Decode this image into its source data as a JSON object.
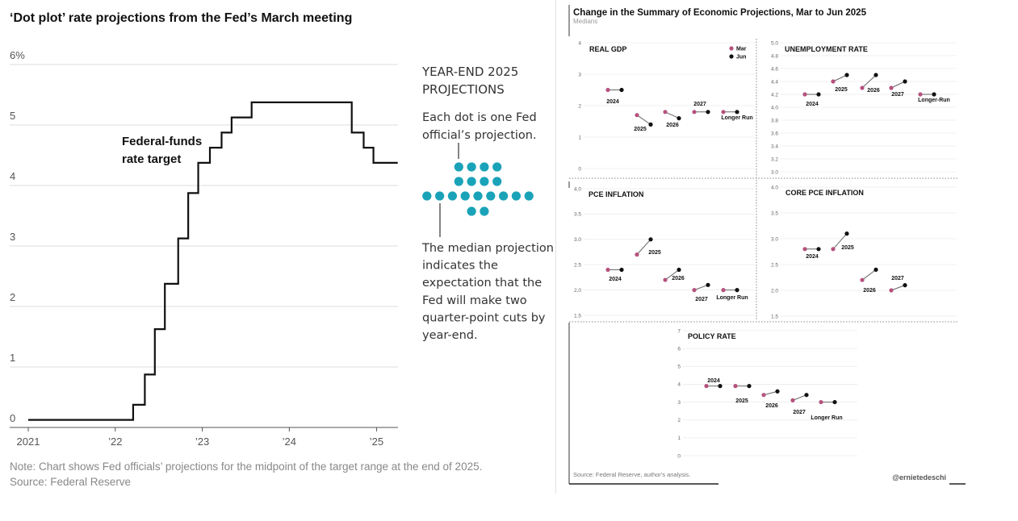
{
  "left": {
    "title": "‘Dot plot’ rate projections from the Fed’s March meeting",
    "note_line1": "Note: Chart shows Fed officials’ projections for the midpoint of the target range at the end of 2025.",
    "note_line2": "Source: Federal Reserve",
    "annotation": {
      "heading": [
        "YEAR-END 2025",
        "PROJECTIONS"
      ],
      "dot_caption": [
        "Each dot is one Fed",
        "official’s projection."
      ],
      "median_caption": [
        "The median projection",
        "indicates the",
        "expectation that the",
        "Fed will make two",
        "quarter-point cuts by",
        "year-end."
      ],
      "dot_rows": [
        4,
        4,
        9,
        2
      ],
      "dot_color": "#1aa3b8"
    }
  },
  "right": {
    "title": "Change in the Summary of Economic Projections, Mar to Jun 2025",
    "subtitle": "Medians",
    "source": "Source: Federal Reserve, author's analysis.",
    "handle": "@ernietedeschi",
    "legend": [
      "Mar",
      "Jun"
    ],
    "mar_color": "#b5527d",
    "jun_color": "#111111"
  },
  "chart_data": [
    {
      "type": "line",
      "subtype": "step",
      "title": "‘Dot plot’ rate projections from the Fed’s March meeting",
      "series": [
        {
          "name": "Federal-funds rate target",
          "label_lines": [
            "Federal-funds",
            "rate target"
          ],
          "points": [
            [
              "2021-01-01",
              0.125
            ],
            [
              "2022-03-17",
              0.375
            ],
            [
              "2022-05-05",
              0.875
            ],
            [
              "2022-06-16",
              1.625
            ],
            [
              "2022-07-28",
              2.375
            ],
            [
              "2022-09-22",
              3.125
            ],
            [
              "2022-11-03",
              3.875
            ],
            [
              "2022-12-15",
              4.375
            ],
            [
              "2023-02-02",
              4.625
            ],
            [
              "2023-03-23",
              4.875
            ],
            [
              "2023-05-04",
              5.125
            ],
            [
              "2023-07-27",
              5.375
            ],
            [
              "2024-09-19",
              4.875
            ],
            [
              "2024-11-08",
              4.625
            ],
            [
              "2024-12-19",
              4.375
            ],
            [
              "2025-03-31",
              4.375
            ]
          ]
        }
      ],
      "x_ticks": [
        "2021",
        "’22",
        "’23",
        "’24",
        "’25"
      ],
      "y_ticks": [
        "0",
        "1",
        "2",
        "3",
        "4",
        "5",
        "6%"
      ],
      "ylim": [
        0,
        6
      ]
    },
    {
      "type": "scatter",
      "title": "REAL GDP",
      "categories": [
        "2024",
        "2025",
        "2026",
        "2027",
        "Longer Run"
      ],
      "series": [
        {
          "name": "Mar",
          "values": [
            2.5,
            1.7,
            1.8,
            1.8,
            1.8
          ]
        },
        {
          "name": "Jun",
          "values": [
            2.5,
            1.4,
            1.6,
            1.8,
            1.8
          ]
        }
      ],
      "y_ticks": [
        "0",
        "1",
        "2",
        "3",
        "4"
      ],
      "ylim": [
        0,
        4
      ]
    },
    {
      "type": "scatter",
      "title": "UNEMPLOYMENT RATE",
      "categories": [
        "2024",
        "2025",
        "2026",
        "2027",
        "Longer-Run"
      ],
      "series": [
        {
          "name": "Mar",
          "values": [
            4.2,
            4.4,
            4.3,
            4.3,
            4.2
          ]
        },
        {
          "name": "Jun",
          "values": [
            4.2,
            4.5,
            4.5,
            4.4,
            4.2
          ]
        }
      ],
      "y_ticks": [
        "3.0",
        "3.2",
        "3.4",
        "3.6",
        "3.8",
        "4.0",
        "4.2",
        "4.4",
        "4.6",
        "4.8",
        "5.0"
      ],
      "ylim": [
        3.0,
        5.0
      ]
    },
    {
      "type": "scatter",
      "title": "PCE INFLATION",
      "categories": [
        "2024",
        "2025",
        "2026",
        "2027",
        "Longer Run"
      ],
      "series": [
        {
          "name": "Mar",
          "values": [
            2.4,
            2.7,
            2.2,
            2.0,
            2.0
          ]
        },
        {
          "name": "Jun",
          "values": [
            2.4,
            3.0,
            2.4,
            2.1,
            2.0
          ]
        }
      ],
      "y_ticks": [
        "1.5",
        "2.0",
        "2.5",
        "3.0",
        "3.5",
        "4.0"
      ],
      "ylim": [
        1.5,
        4.0
      ]
    },
    {
      "type": "scatter",
      "title": "CORE PCE INFLATION",
      "categories": [
        "2024",
        "2025",
        "2026",
        "2027"
      ],
      "series": [
        {
          "name": "Mar",
          "values": [
            2.8,
            2.8,
            2.2,
            2.0
          ]
        },
        {
          "name": "Jun",
          "values": [
            2.8,
            3.1,
            2.4,
            2.1
          ]
        }
      ],
      "y_ticks": [
        "1.5",
        "2.0",
        "2.5",
        "3.0",
        "3.5",
        "4.0"
      ],
      "ylim": [
        1.5,
        4.0
      ]
    },
    {
      "type": "scatter",
      "title": "POLICY RATE",
      "categories": [
        "2024",
        "2025",
        "2026",
        "2027",
        "Longer Run"
      ],
      "series": [
        {
          "name": "Mar",
          "values": [
            3.9,
            3.9,
            3.4,
            3.1,
            3.0
          ]
        },
        {
          "name": "Jun",
          "values": [
            3.9,
            3.9,
            3.6,
            3.4,
            3.0
          ]
        }
      ],
      "y_ticks": [
        "0",
        "1",
        "2",
        "3",
        "4",
        "5",
        "6",
        "7"
      ],
      "ylim": [
        0,
        7
      ]
    }
  ]
}
